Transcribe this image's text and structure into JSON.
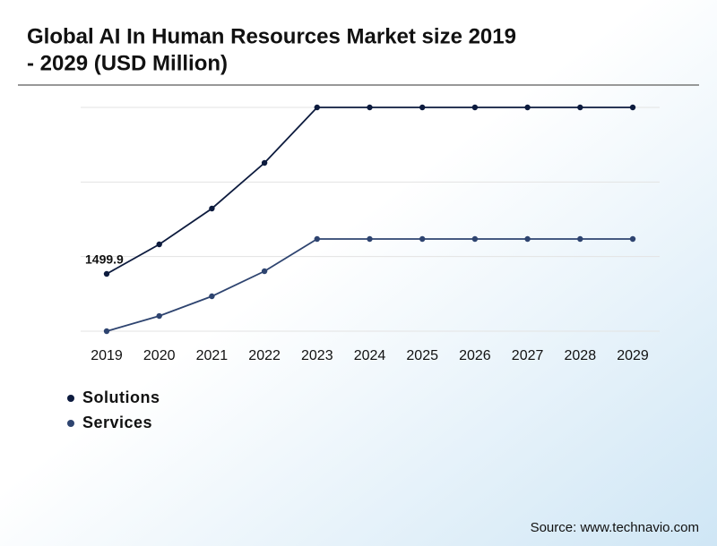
{
  "chart_data": {
    "type": "line",
    "title": "Global AI In Human Resources Market size 2019",
    "title_line2": "- 2029 (USD Million)",
    "source": "Source: www.technavio.com",
    "categories": [
      "2019",
      "2020",
      "2021",
      "2022",
      "2023",
      "2024",
      "2025",
      "2026",
      "2027",
      "2028",
      "2029"
    ],
    "series": [
      {
        "name": "Solutions",
        "color": "#0d1b3e",
        "values": [
          1499.9,
          2273,
          3211,
          4406,
          5859,
          5859,
          5859,
          5859,
          5859,
          5859,
          5859
        ]
      },
      {
        "name": "Services",
        "color": "#2e4470",
        "values": [
          0,
          398,
          914,
          1570,
          2414,
          2414,
          2414,
          2414,
          2414,
          2414,
          2414
        ]
      }
    ],
    "ylim": [
      0,
      5859
    ],
    "yticks": [
      0,
      1953,
      3906,
      5859
    ],
    "grid": true
  }
}
